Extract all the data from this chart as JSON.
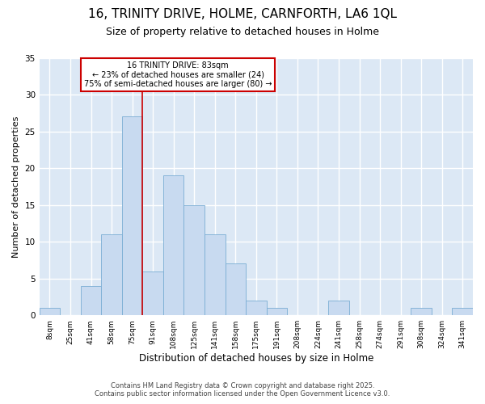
{
  "title1": "16, TRINITY DRIVE, HOLME, CARNFORTH, LA6 1QL",
  "title2": "Size of property relative to detached houses in Holme",
  "xlabel": "Distribution of detached houses by size in Holme",
  "ylabel": "Number of detached properties",
  "bar_labels": [
    "8sqm",
    "25sqm",
    "41sqm",
    "58sqm",
    "75sqm",
    "91sqm",
    "108sqm",
    "125sqm",
    "141sqm",
    "158sqm",
    "175sqm",
    "191sqm",
    "208sqm",
    "224sqm",
    "241sqm",
    "258sqm",
    "274sqm",
    "291sqm",
    "308sqm",
    "324sqm",
    "341sqm"
  ],
  "bar_values": [
    1,
    0,
    4,
    11,
    27,
    6,
    19,
    15,
    11,
    7,
    2,
    1,
    0,
    0,
    2,
    0,
    0,
    0,
    1,
    0,
    1
  ],
  "bar_color": "#c8daf0",
  "bar_edgecolor": "#7aadd4",
  "property_label": "16 TRINITY DRIVE: 83sqm",
  "annotation_line1": "← 23% of detached houses are smaller (24)",
  "annotation_line2": "75% of semi-detached houses are larger (80) →",
  "vline_color": "#cc0000",
  "annotation_box_color": "#cc0000",
  "annotation_text_color": "#000000",
  "annotation_box_bg": "#ffffff",
  "ylim": [
    0,
    35
  ],
  "yticks": [
    0,
    5,
    10,
    15,
    20,
    25,
    30,
    35
  ],
  "bg_color": "#dce8f5",
  "footer": "Contains HM Land Registry data © Crown copyright and database right 2025.\nContains public sector information licensed under the Open Government Licence v3.0.",
  "title1_fontsize": 11,
  "title2_fontsize": 9,
  "xlabel_fontsize": 8.5,
  "ylabel_fontsize": 8
}
